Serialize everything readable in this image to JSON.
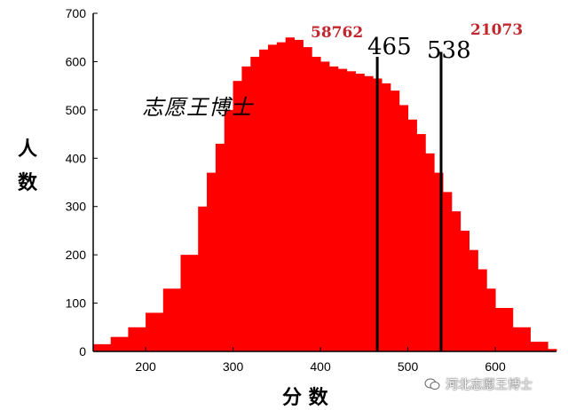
{
  "chart_data": {
    "type": "bar",
    "title": "",
    "xlabel": "分 数",
    "ylabel_chars": [
      "人",
      "数"
    ],
    "xlim": [
      140,
      670
    ],
    "ylim": [
      0,
      700
    ],
    "xticks": [
      200,
      300,
      400,
      500,
      600
    ],
    "yticks": [
      0,
      100,
      200,
      300,
      400,
      500,
      600,
      700
    ],
    "grid": false,
    "bar_color": "#ff0000",
    "series": [
      {
        "x": [
          140,
          160,
          180,
          200,
          220,
          240,
          260,
          270,
          280,
          290,
          300,
          310,
          320,
          330,
          340,
          350,
          360,
          370,
          380,
          390,
          400,
          410,
          420,
          430,
          440,
          450,
          460,
          470,
          480,
          490,
          500,
          510,
          520,
          530,
          540,
          550,
          560,
          570,
          580,
          590,
          600,
          620,
          640,
          660
        ],
        "values": [
          15,
          30,
          50,
          80,
          130,
          200,
          300,
          370,
          430,
          500,
          560,
          590,
          610,
          625,
          635,
          640,
          650,
          645,
          630,
          610,
          600,
          590,
          585,
          580,
          575,
          570,
          565,
          555,
          540,
          510,
          480,
          450,
          410,
          370,
          330,
          290,
          250,
          210,
          170,
          130,
          90,
          50,
          20,
          5
        ]
      }
    ],
    "annotations": [
      {
        "text": "58762",
        "color": "#c0282d"
      },
      {
        "text": "21073",
        "color": "#c0282d"
      }
    ],
    "cutoff_lines": [
      {
        "x": 465,
        "label": "465",
        "top_value": 610
      },
      {
        "x": 538,
        "label": "538",
        "top_value": 620
      }
    ]
  },
  "watermark": "志愿王博士",
  "source_label": "河北志愿王博士",
  "icon": "wechat-icon"
}
